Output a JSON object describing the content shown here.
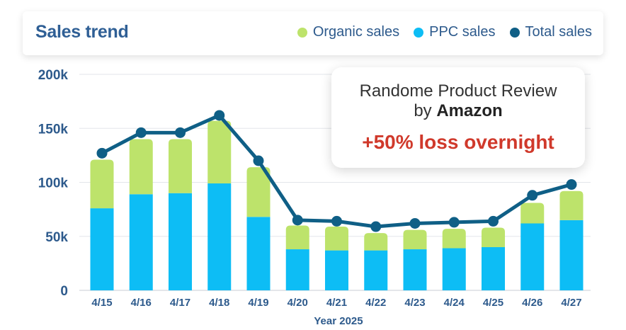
{
  "header": {
    "title": "Sales trend",
    "legend": [
      {
        "label": "Organic sales",
        "color": "#bde36b"
      },
      {
        "label": "PPC sales",
        "color": "#0dbdf5"
      },
      {
        "label": "Total sales",
        "color": "#0f5f86"
      }
    ]
  },
  "callout": {
    "line1": "Randome Product Review",
    "line2_prefix": "by",
    "line2_brand": "Amazon",
    "alert": "+50% loss overnight"
  },
  "chart_data": {
    "type": "bar",
    "stacked": true,
    "title": "Sales trend",
    "xlabel": "Year 2025",
    "ylabel": "",
    "ylim": [
      0,
      200000
    ],
    "y_ticks": [
      {
        "value": 0,
        "label": "0"
      },
      {
        "value": 50000,
        "label": "50k"
      },
      {
        "value": 100000,
        "label": "100k"
      },
      {
        "value": 150000,
        "label": "150k"
      },
      {
        "value": 200000,
        "label": "200k"
      }
    ],
    "grid": true,
    "legend_position": "top-right",
    "categories": [
      "4/15",
      "4/16",
      "4/17",
      "4/18",
      "4/19",
      "4/20",
      "4/21",
      "4/22",
      "4/23",
      "4/24",
      "4/25",
      "4/26",
      "4/27"
    ],
    "series": [
      {
        "name": "PPC sales",
        "color": "#0dbdf5",
        "values": [
          76000,
          89000,
          90000,
          99000,
          68000,
          38000,
          37000,
          37000,
          38000,
          39000,
          40000,
          62000,
          65000
        ]
      },
      {
        "name": "Organic sales",
        "color": "#bde36b",
        "values": [
          45000,
          51000,
          50000,
          58000,
          46000,
          22000,
          22000,
          16000,
          18000,
          18000,
          18000,
          19000,
          27000
        ]
      },
      {
        "name": "Total sales",
        "color": "#0f5f86",
        "type": "line",
        "values": [
          127000,
          146000,
          146000,
          162000,
          120000,
          65000,
          64000,
          59000,
          62000,
          63000,
          64000,
          88000,
          98000
        ]
      }
    ]
  }
}
